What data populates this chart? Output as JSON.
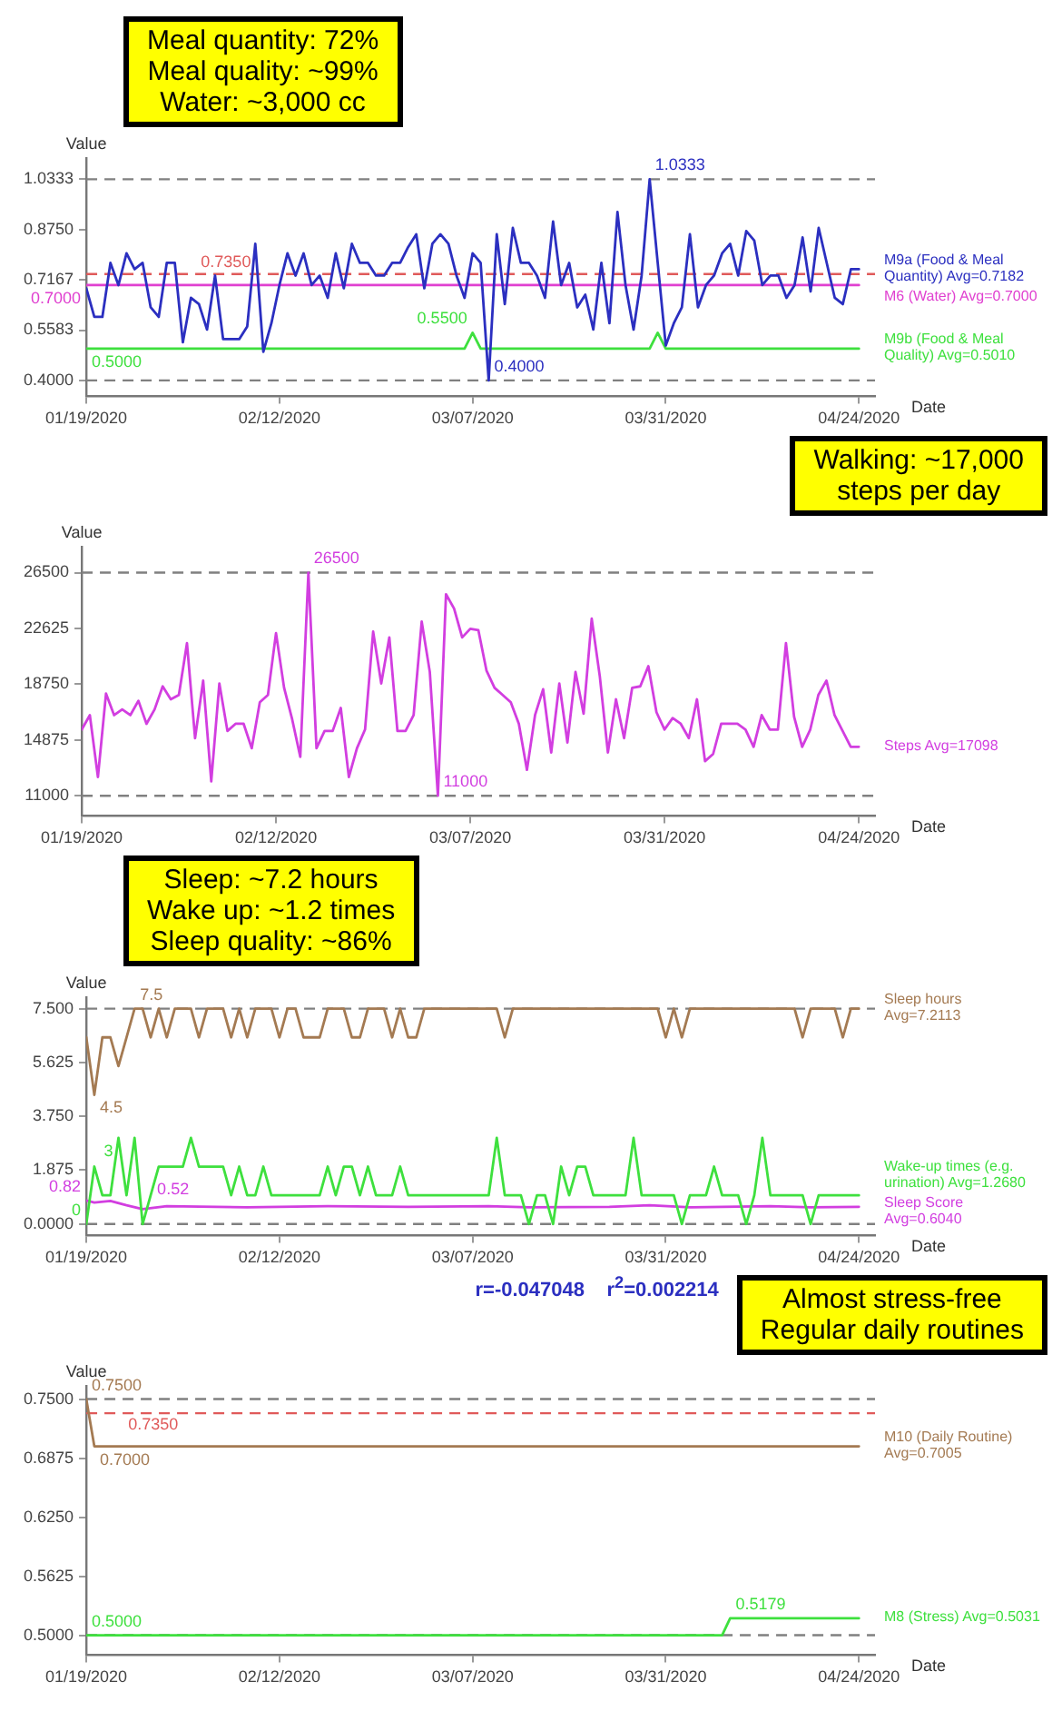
{
  "chart_data": [
    {
      "type": "line",
      "title": "Meal quantity: 72%\nMeal quality: ~99%\nWater: ~3,000 cc",
      "xlabel": "Date",
      "ylabel": "Value",
      "x": [
        "2020-01-19",
        "2020-01-20",
        "2020-01-21",
        "2020-01-22",
        "2020-01-23",
        "2020-01-24",
        "2020-01-25",
        "2020-01-26",
        "2020-01-27",
        "2020-01-28",
        "2020-01-29",
        "2020-01-30",
        "2020-01-31",
        "2020-02-01",
        "2020-02-02",
        "2020-02-03",
        "2020-02-04",
        "2020-02-05",
        "2020-02-06",
        "2020-02-07",
        "2020-02-08",
        "2020-02-09",
        "2020-02-10",
        "2020-02-11",
        "2020-02-12",
        "2020-02-13",
        "2020-02-14",
        "2020-02-15",
        "2020-02-16",
        "2020-02-17",
        "2020-02-18",
        "2020-02-19",
        "2020-02-20",
        "2020-02-21",
        "2020-02-22",
        "2020-02-23",
        "2020-02-24",
        "2020-02-25",
        "2020-02-26",
        "2020-02-27",
        "2020-02-28",
        "2020-02-29",
        "2020-03-01",
        "2020-03-02",
        "2020-03-03",
        "2020-03-04",
        "2020-03-05",
        "2020-03-06",
        "2020-03-07",
        "2020-03-08",
        "2020-03-09",
        "2020-03-10",
        "2020-03-11",
        "2020-03-12",
        "2020-03-13",
        "2020-03-14",
        "2020-03-15",
        "2020-03-16",
        "2020-03-17",
        "2020-03-18",
        "2020-03-19",
        "2020-03-20",
        "2020-03-21",
        "2020-03-22",
        "2020-03-23",
        "2020-03-24",
        "2020-03-25",
        "2020-03-26",
        "2020-03-27",
        "2020-03-28",
        "2020-03-29",
        "2020-03-30",
        "2020-03-31",
        "2020-04-01",
        "2020-04-02",
        "2020-04-03",
        "2020-04-04",
        "2020-04-05",
        "2020-04-06",
        "2020-04-07",
        "2020-04-08",
        "2020-04-09",
        "2020-04-10",
        "2020-04-11",
        "2020-04-12",
        "2020-04-13",
        "2020-04-14",
        "2020-04-15",
        "2020-04-16",
        "2020-04-17",
        "2020-04-18",
        "2020-04-19",
        "2020-04-20",
        "2020-04-21",
        "2020-04-22",
        "2020-04-23",
        "2020-04-24"
      ],
      "series": [
        {
          "name": "M9a (Food & Meal Quantity) Avg=0.7182",
          "color": "#2b2fc0",
          "values": [
            0.69,
            0.6,
            0.6,
            0.77,
            0.7,
            0.8,
            0.75,
            0.77,
            0.63,
            0.6,
            0.77,
            0.77,
            0.52,
            0.66,
            0.64,
            0.56,
            0.73,
            0.53,
            0.53,
            0.53,
            0.57,
            0.83,
            0.49,
            0.58,
            0.7,
            0.8,
            0.73,
            0.8,
            0.7,
            0.73,
            0.66,
            0.8,
            0.69,
            0.83,
            0.77,
            0.77,
            0.73,
            0.73,
            0.77,
            0.77,
            0.82,
            0.86,
            0.69,
            0.83,
            0.86,
            0.83,
            0.73,
            0.66,
            0.8,
            0.77,
            0.4,
            0.86,
            0.64,
            0.88,
            0.77,
            0.77,
            0.73,
            0.66,
            0.9,
            0.7,
            0.77,
            0.63,
            0.67,
            0.56,
            0.77,
            0.58,
            0.93,
            0.7,
            0.56,
            0.73,
            1.0333,
            0.77,
            0.51,
            0.58,
            0.63,
            0.86,
            0.63,
            0.7,
            0.73,
            0.8,
            0.83,
            0.73,
            0.87,
            0.84,
            0.7,
            0.73,
            0.73,
            0.66,
            0.7,
            0.85,
            0.68,
            0.88,
            0.77,
            0.66,
            0.64,
            0.75,
            0.75
          ]
        },
        {
          "name": "M6 (Water) Avg=0.7000",
          "color": "#e040d0",
          "x": [
            "2020-01-19",
            "2020-04-24"
          ],
          "values": [
            0.7,
            0.7
          ]
        },
        {
          "name": "M9b (Food & Meal Quality) Avg=0.5010",
          "color": "#3ee03e",
          "x": [
            "2020-01-19",
            "2020-03-06",
            "2020-03-07",
            "2020-03-08",
            "2020-03-29",
            "2020-03-30",
            "2020-03-31",
            "2020-04-24"
          ],
          "values": [
            0.5,
            0.5,
            0.55,
            0.5,
            0.5,
            0.55,
            0.5,
            0.5
          ]
        }
      ],
      "ylim": [
        0.35,
        1.1
      ],
      "yticks": [
        1.0333,
        {
          "value": 0.875,
          "label": "0.8750"
        },
        0.7167,
        0.5583,
        {
          "value": 0.4,
          "label": "0.4000"
        }
      ],
      "xlim": [
        "2020-01-19",
        "2020-04-26"
      ],
      "xticks": [
        {
          "value": "2020-01-19",
          "label": "01/19/2020"
        },
        {
          "value": "2020-02-12",
          "label": "02/12/2020"
        },
        {
          "value": "2020-03-07",
          "label": "03/07/2020"
        },
        {
          "value": "2020-03-31",
          "label": "03/31/2020"
        },
        {
          "value": "2020-04-24",
          "label": "04/24/2020"
        }
      ],
      "ref_lines": [
        {
          "axis": "y",
          "value": 1.0333,
          "color": "#808080",
          "line_style": "dashed"
        },
        {
          "axis": "y",
          "value": 0.4,
          "color": "#808080",
          "line_style": "dashed"
        },
        {
          "axis": "y",
          "value": 0.735,
          "label": "0.7350",
          "color": "#e05a5a",
          "line_style": "dashed"
        }
      ],
      "annotations": [
        {
          "text": "1.0333",
          "x": "2020-03-29",
          "y": 1.0333
        },
        {
          "text": "0.4000",
          "x": "2020-03-09",
          "y": 0.4
        },
        {
          "text": "0.5500",
          "x": "2020-03-07",
          "y": 0.55
        },
        {
          "text": "0.5000",
          "x": "2020-01-19",
          "y": 0.5
        },
        {
          "text": "0.7000",
          "x": "2020-01-19",
          "y": 0.7
        }
      ]
    },
    {
      "type": "line",
      "title": "Walking: ~17,000\nsteps per day",
      "xlabel": "Date",
      "ylabel": "Value",
      "x": [
        "2020-01-19",
        "2020-01-20",
        "2020-01-21",
        "2020-01-22",
        "2020-01-23",
        "2020-01-24",
        "2020-01-25",
        "2020-01-26",
        "2020-01-27",
        "2020-01-28",
        "2020-01-29",
        "2020-01-30",
        "2020-01-31",
        "2020-02-01",
        "2020-02-02",
        "2020-02-03",
        "2020-02-04",
        "2020-02-05",
        "2020-02-06",
        "2020-02-07",
        "2020-02-08",
        "2020-02-09",
        "2020-02-10",
        "2020-02-11",
        "2020-02-12",
        "2020-02-13",
        "2020-02-14",
        "2020-02-15",
        "2020-02-16",
        "2020-02-17",
        "2020-02-18",
        "2020-02-19",
        "2020-02-20",
        "2020-02-21",
        "2020-02-22",
        "2020-02-23",
        "2020-02-24",
        "2020-02-25",
        "2020-02-26",
        "2020-02-27",
        "2020-02-28",
        "2020-02-29",
        "2020-03-01",
        "2020-03-02",
        "2020-03-03",
        "2020-03-04",
        "2020-03-05",
        "2020-03-06",
        "2020-03-07",
        "2020-03-08",
        "2020-03-09",
        "2020-03-10",
        "2020-03-11",
        "2020-03-12",
        "2020-03-13",
        "2020-03-14",
        "2020-03-15",
        "2020-03-16",
        "2020-03-17",
        "2020-03-18",
        "2020-03-19",
        "2020-03-20",
        "2020-03-21",
        "2020-03-22",
        "2020-03-23",
        "2020-03-24",
        "2020-03-25",
        "2020-03-26",
        "2020-03-27",
        "2020-03-28",
        "2020-03-29",
        "2020-03-30",
        "2020-03-31",
        "2020-04-01",
        "2020-04-02",
        "2020-04-03",
        "2020-04-04",
        "2020-04-05",
        "2020-04-06",
        "2020-04-07",
        "2020-04-08",
        "2020-04-09",
        "2020-04-10",
        "2020-04-11",
        "2020-04-12",
        "2020-04-13",
        "2020-04-14",
        "2020-04-15",
        "2020-04-16",
        "2020-04-17",
        "2020-04-18",
        "2020-04-19",
        "2020-04-20",
        "2020-04-21",
        "2020-04-22",
        "2020-04-23",
        "2020-04-24"
      ],
      "series": [
        {
          "name": "Steps Avg=17098",
          "color": "#d23ee0",
          "values": [
            15600,
            16600,
            12300,
            18100,
            16600,
            17000,
            16600,
            17600,
            16000,
            17000,
            18600,
            17700,
            18000,
            21600,
            15000,
            19000,
            12000,
            18800,
            15500,
            16000,
            16000,
            14300,
            17500,
            18000,
            22300,
            18500,
            16300,
            13700,
            26500,
            14300,
            15500,
            15500,
            17100,
            12300,
            14300,
            15600,
            22400,
            18800,
            22000,
            15500,
            15500,
            16600,
            23100,
            19600,
            11000,
            25000,
            24000,
            22000,
            22600,
            22500,
            19700,
            18500,
            18000,
            17500,
            16000,
            12800,
            16600,
            18400,
            14000,
            18800,
            14700,
            19600,
            16700,
            23300,
            19300,
            14000,
            17700,
            15000,
            18500,
            18600,
            20000,
            16800,
            15600,
            16400,
            16000,
            15000,
            17700,
            13400,
            13900,
            16000,
            16000,
            16000,
            15600,
            14400,
            16600,
            15600,
            15600,
            21600,
            16500,
            14400,
            15600,
            18000,
            19000,
            16600,
            15500,
            14400,
            14400
          ]
        }
      ],
      "ylim": [
        9600,
        28300
      ],
      "yticks": [
        11000,
        14875,
        18750,
        22625,
        26500
      ],
      "xlim": [
        "2020-01-19",
        "2020-04-26"
      ],
      "xticks": [
        {
          "value": "2020-01-19",
          "label": "01/19/2020"
        },
        {
          "value": "2020-02-12",
          "label": "02/12/2020"
        },
        {
          "value": "2020-03-07",
          "label": "03/07/2020"
        },
        {
          "value": "2020-03-31",
          "label": "03/31/2020"
        },
        {
          "value": "2020-04-24",
          "label": "04/24/2020"
        }
      ],
      "ref_lines": [
        {
          "axis": "y",
          "value": 26500,
          "color": "#808080",
          "line_style": "dashed"
        },
        {
          "axis": "y",
          "value": 11000,
          "color": "#808080",
          "line_style": "dashed"
        }
      ],
      "annotations": [
        {
          "text": "26500",
          "x": "2020-02-16",
          "y": 26500
        },
        {
          "text": "11000",
          "x": "2020-03-03",
          "y": 11000
        }
      ]
    },
    {
      "type": "line",
      "title": "Sleep: ~7.2 hours\nWake up: ~1.2 times\nSleep quality: ~86%",
      "xlabel": "Date",
      "ylabel": "Value",
      "x": [
        "2020-01-19",
        "2020-01-20",
        "2020-01-21",
        "2020-01-22",
        "2020-01-23",
        "2020-01-24",
        "2020-01-25",
        "2020-01-26",
        "2020-01-27",
        "2020-01-28",
        "2020-01-29",
        "2020-01-30",
        "2020-01-31",
        "2020-02-01",
        "2020-02-02",
        "2020-02-03",
        "2020-02-04",
        "2020-02-05",
        "2020-02-06",
        "2020-02-07",
        "2020-02-08",
        "2020-02-09",
        "2020-02-10",
        "2020-02-11",
        "2020-02-12",
        "2020-02-13",
        "2020-02-14",
        "2020-02-15",
        "2020-02-16",
        "2020-02-17",
        "2020-02-18",
        "2020-02-19",
        "2020-02-20",
        "2020-02-21",
        "2020-02-22",
        "2020-02-23",
        "2020-02-24",
        "2020-02-25",
        "2020-02-26",
        "2020-02-27",
        "2020-02-28",
        "2020-02-29",
        "2020-03-01",
        "2020-03-02",
        "2020-03-03",
        "2020-03-04",
        "2020-03-05",
        "2020-03-06",
        "2020-03-07",
        "2020-03-08",
        "2020-03-09",
        "2020-03-10",
        "2020-03-11",
        "2020-03-12",
        "2020-03-13",
        "2020-03-14",
        "2020-03-15",
        "2020-03-16",
        "2020-03-17",
        "2020-03-18",
        "2020-03-19",
        "2020-03-20",
        "2020-03-21",
        "2020-03-22",
        "2020-03-23",
        "2020-03-24",
        "2020-03-25",
        "2020-03-26",
        "2020-03-27",
        "2020-03-28",
        "2020-03-29",
        "2020-03-30",
        "2020-03-31",
        "2020-04-01",
        "2020-04-02",
        "2020-04-03",
        "2020-04-04",
        "2020-04-05",
        "2020-04-06",
        "2020-04-07",
        "2020-04-08",
        "2020-04-09",
        "2020-04-10",
        "2020-04-11",
        "2020-04-12",
        "2020-04-13",
        "2020-04-14",
        "2020-04-15",
        "2020-04-16",
        "2020-04-17",
        "2020-04-18",
        "2020-04-19",
        "2020-04-20",
        "2020-04-21",
        "2020-04-22",
        "2020-04-23",
        "2020-04-24"
      ],
      "series": [
        {
          "name": "Sleep hours Avg=7.2113",
          "color": "#a47a52",
          "values": [
            6.5,
            4.5,
            6.5,
            6.5,
            5.5,
            6.5,
            7.5,
            7.5,
            6.5,
            7.5,
            6.5,
            7.5,
            7.5,
            7.5,
            6.5,
            7.5,
            7.5,
            7.5,
            6.5,
            7.5,
            6.5,
            7.5,
            7.5,
            7.5,
            6.5,
            7.5,
            7.5,
            6.5,
            6.5,
            6.5,
            7.5,
            7.5,
            7.5,
            6.5,
            6.5,
            7.5,
            7.5,
            7.5,
            6.5,
            7.5,
            6.5,
            6.5,
            7.5,
            7.5,
            7.5,
            7.5,
            7.5,
            7.5,
            7.5,
            7.5,
            7.5,
            7.5,
            6.5,
            7.5,
            7.5,
            7.5,
            7.5,
            7.5,
            7.5,
            7.5,
            7.5,
            7.5,
            7.5,
            7.5,
            7.5,
            7.5,
            7.5,
            7.5,
            7.5,
            7.5,
            7.5,
            7.5,
            6.5,
            7.5,
            6.5,
            7.5,
            7.5,
            7.5,
            7.5,
            7.5,
            7.5,
            7.5,
            7.5,
            7.5,
            7.5,
            7.5,
            7.5,
            7.5,
            7.5,
            6.5,
            7.5,
            7.5,
            7.5,
            7.5,
            6.5,
            7.5,
            7.5
          ]
        },
        {
          "name": "Wake-up times (e.g. urination) Avg=1.2680",
          "color": "#3ee03e",
          "values": [
            0,
            2,
            1,
            1,
            3,
            1,
            3,
            0,
            1,
            2,
            2,
            2,
            2,
            3,
            2,
            2,
            2,
            2,
            1,
            2,
            1,
            1,
            2,
            1,
            1,
            1,
            1,
            1,
            1,
            1,
            2,
            1,
            2,
            2,
            1,
            2,
            1,
            1,
            1,
            2,
            1,
            1,
            1,
            1,
            1,
            1,
            1,
            1,
            1,
            1,
            1,
            3,
            1,
            1,
            1,
            0,
            1,
            1,
            0,
            2,
            1,
            2,
            2,
            1,
            1,
            1,
            1,
            1,
            3,
            1,
            1,
            1,
            1,
            1,
            0,
            1,
            1,
            1,
            2,
            1,
            1,
            1,
            0,
            1,
            3,
            1,
            1,
            1,
            1,
            1,
            0,
            1,
            1,
            1,
            1,
            1,
            1
          ]
        },
        {
          "name": "Sleep Score Avg=0.6040",
          "color": "#d23ee0",
          "x": [
            "2020-01-19",
            "2020-01-20",
            "2020-01-22",
            "2020-01-24",
            "2020-01-26",
            "2020-01-29",
            "2020-02-08",
            "2020-02-18",
            "2020-02-28",
            "2020-03-09",
            "2020-03-14",
            "2020-03-24",
            "2020-03-29",
            "2020-04-03",
            "2020-04-13",
            "2020-04-18",
            "2020-04-24"
          ],
          "values": [
            0.82,
            0.75,
            0.8,
            0.65,
            0.52,
            0.62,
            0.58,
            0.62,
            0.6,
            0.62,
            0.58,
            0.6,
            0.65,
            0.58,
            0.62,
            0.58,
            0.6
          ]
        }
      ],
      "ylim": [
        -0.4,
        7.9
      ],
      "yticks": [
        {
          "value": 7.5,
          "label": "7.500"
        },
        5.625,
        {
          "value": 3.75,
          "label": "3.750"
        },
        1.875,
        {
          "value": 0,
          "label": "0.0000"
        }
      ],
      "xlim": [
        "2020-01-19",
        "2020-04-26"
      ],
      "xticks": [
        {
          "value": "2020-01-19",
          "label": "01/19/2020"
        },
        {
          "value": "2020-02-12",
          "label": "02/12/2020"
        },
        {
          "value": "2020-03-07",
          "label": "03/07/2020"
        },
        {
          "value": "2020-03-31",
          "label": "03/31/2020"
        },
        {
          "value": "2020-04-24",
          "label": "04/24/2020"
        }
      ],
      "ref_lines": [
        {
          "axis": "y",
          "value": 7.5,
          "color": "#808080",
          "line_style": "dashed"
        },
        {
          "axis": "y",
          "value": 0,
          "color": "#808080",
          "line_style": "dashed"
        }
      ],
      "annotations": [
        {
          "text": "7.5",
          "x": "2020-01-25",
          "y": 7.5
        },
        {
          "text": "4.5",
          "x": "2020-01-20",
          "y": 4.5
        },
        {
          "text": "3",
          "x": "2020-01-23",
          "y": 3
        },
        {
          "text": "0",
          "x": "2020-01-19",
          "y": 0
        },
        {
          "text": "0.82",
          "x": "2020-01-19",
          "y": 0.82
        },
        {
          "text": "0.52",
          "x": "2020-01-26",
          "y": 0.52
        }
      ]
    },
    {
      "type": "line",
      "title": "Almost stress-free\nRegular daily routines",
      "subtitle": "r=-0.047048    r$^{2}$=0.002214",
      "xlabel": "Date",
      "ylabel": "Value",
      "series": [
        {
          "name": "M10 (Daily Routine) Avg=0.7005",
          "color": "#a47a52",
          "x": [
            "2020-01-19",
            "2020-01-20",
            "2020-04-24"
          ],
          "values": [
            0.75,
            0.7,
            0.7
          ]
        },
        {
          "name": "M8 (Stress) Avg=0.5031",
          "color": "#3ee03e",
          "x": [
            "2020-01-19",
            "2020-04-07",
            "2020-04-08",
            "2020-04-24"
          ],
          "values": [
            0.5,
            0.5,
            0.5179,
            0.5179
          ]
        }
      ],
      "ylim": [
        0.479,
        0.764
      ],
      "yticks": [
        {
          "value": 0.75,
          "label": "0.7500"
        },
        0.6875,
        {
          "value": 0.625,
          "label": "0.6250"
        },
        0.5625,
        {
          "value": 0.5,
          "label": "0.5000"
        }
      ],
      "xlim": [
        "2020-01-19",
        "2020-04-26"
      ],
      "xticks": [
        {
          "value": "2020-01-19",
          "label": "01/19/2020"
        },
        {
          "value": "2020-02-12",
          "label": "02/12/2020"
        },
        {
          "value": "2020-03-07",
          "label": "03/07/2020"
        },
        {
          "value": "2020-03-31",
          "label": "03/31/2020"
        },
        {
          "value": "2020-04-24",
          "label": "04/24/2020"
        }
      ],
      "ref_lines": [
        {
          "axis": "y",
          "value": 0.75,
          "color": "#808080",
          "line_style": "dashed"
        },
        {
          "axis": "y",
          "value": 0.735,
          "label": "0.7350",
          "color": "#e05a5a",
          "line_style": "dashed"
        },
        {
          "axis": "y",
          "value": 0.5,
          "color": "#808080",
          "line_style": "dashed"
        }
      ],
      "annotations": [
        {
          "text": "0.7500",
          "x": "2020-01-19",
          "y": 0.75
        },
        {
          "text": "0.7000",
          "x": "2020-01-20",
          "y": 0.7
        },
        {
          "text": "0.5000",
          "x": "2020-01-19",
          "y": 0.5
        },
        {
          "text": "0.5179",
          "x": "2020-04-08",
          "y": 0.5179
        }
      ]
    }
  ]
}
